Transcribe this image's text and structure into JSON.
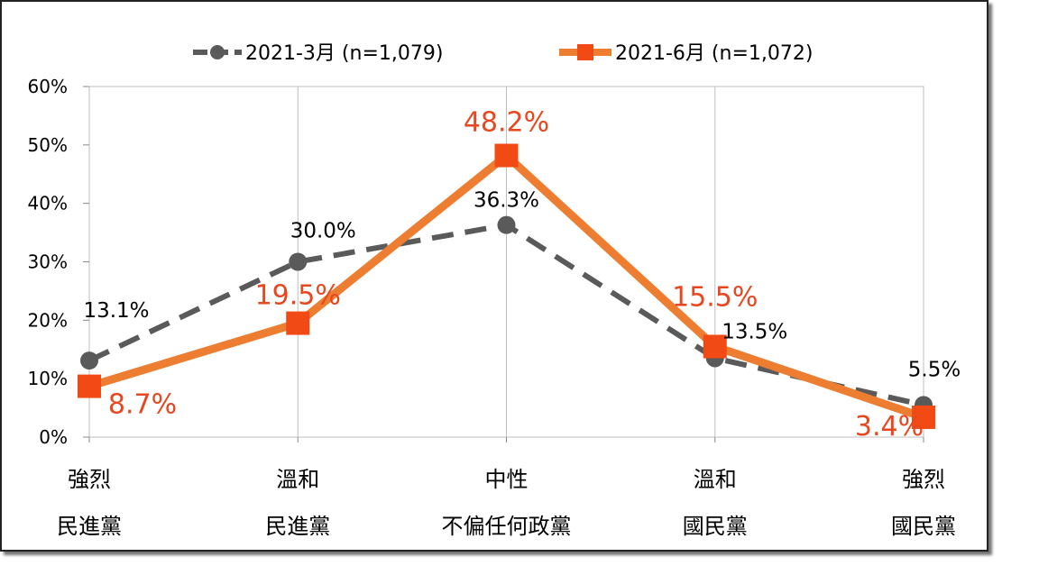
{
  "chart_data": {
    "type": "line",
    "categories": [
      [
        "強烈",
        "民進黨"
      ],
      [
        "溫和",
        "民進黨"
      ],
      [
        "中性",
        "不偏任何政黨"
      ],
      [
        "溫和",
        "國民黨"
      ],
      [
        "強烈",
        "國民黨"
      ]
    ],
    "ylim": [
      0,
      60
    ],
    "yticks": [
      "0%",
      "10%",
      "20%",
      "30%",
      "40%",
      "50%",
      "60%"
    ],
    "legend_position": "top",
    "grid": "vertical",
    "series": [
      {
        "name": "2021-3月  (n=1,079)",
        "values": [
          13.1,
          30.0,
          36.3,
          13.5,
          5.5
        ],
        "labels": [
          "13.1%",
          "30.0%",
          "36.3%",
          "13.5%",
          "5.5%"
        ],
        "color": "#5a5a5a",
        "style": "dashed",
        "marker": "circle"
      },
      {
        "name": "2021-6月  (n=1,072)",
        "values": [
          8.7,
          19.5,
          48.2,
          15.5,
          3.4
        ],
        "labels": [
          "8.7%",
          "19.5%",
          "48.2%",
          "15.5%",
          "3.4%"
        ],
        "color": "#ed7d31",
        "label_color": "#e8461e",
        "marker_color": "#f24a14",
        "style": "solid",
        "marker": "square"
      }
    ]
  }
}
